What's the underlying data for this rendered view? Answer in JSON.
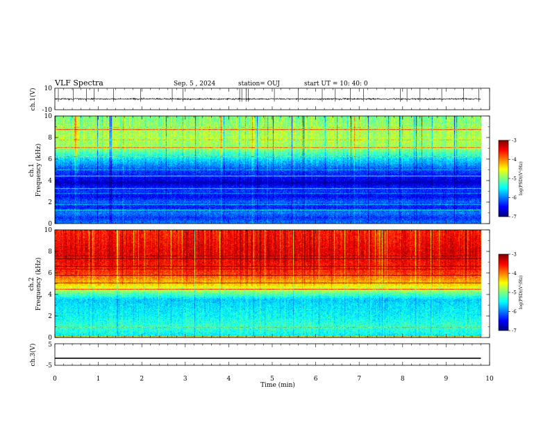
{
  "header": {
    "title": "VLF Spectra",
    "date": "Sep. 5 , 2024",
    "station": "station= OUJ",
    "start": "start UT =   10: 40: 0"
  },
  "chart_data": [
    {
      "type": "line",
      "name": "ch1-waveform",
      "ylabel": "ch.1(V)",
      "ylim": [
        -10,
        10
      ],
      "yticks": [
        "10",
        "-10"
      ],
      "baseline": 0,
      "noise_amplitude": 1.2,
      "spikes_min": [
        0.08,
        0.42,
        0.73,
        0.9,
        1.35,
        1.97,
        2.7,
        2.95,
        4.25,
        4.3,
        4.4,
        4.45,
        5.05,
        5.6,
        6.15,
        6.45,
        6.8,
        7.1,
        7.95,
        8.1,
        8.4,
        8.9,
        9.4,
        9.75
      ]
    },
    {
      "type": "heatmap",
      "name": "ch1-spectrogram",
      "ylabel": "ch.1 Frequency (kHz)",
      "ylim": [
        0,
        10
      ],
      "yticks": [
        "0",
        "2",
        "4",
        "6",
        "8",
        "10"
      ],
      "xlim": [
        0,
        9.8
      ],
      "scale": "log",
      "colorbar": {
        "range": [
          -7,
          -3
        ],
        "ticks": [
          "-3",
          "-4",
          "-5",
          "-6",
          "-7"
        ],
        "label": "log(PSD)(V²/Hz)"
      },
      "profile_khz": [
        0,
        0.5,
        1,
        1.5,
        2,
        2.5,
        3,
        3.5,
        3.8,
        4,
        4.5,
        5,
        6,
        7,
        8,
        9,
        10
      ],
      "profile_log_psd": [
        -6.0,
        -6.3,
        -6.0,
        -6.4,
        -6.1,
        -6.5,
        -6.3,
        -6.5,
        -6.8,
        -6.6,
        -6.4,
        -6.2,
        -5.6,
        -4.9,
        -4.8,
        -4.9,
        -5.0
      ]
    },
    {
      "type": "heatmap",
      "name": "ch2-spectrogram",
      "ylabel": "ch.2 Frequency (kHz)",
      "ylim": [
        0,
        10
      ],
      "yticks": [
        "0",
        "2",
        "4",
        "6",
        "8",
        "10"
      ],
      "xlim": [
        0,
        9.8
      ],
      "scale": "log",
      "colorbar": {
        "range": [
          -7,
          -3
        ],
        "ticks": [
          "-3",
          "-4",
          "-5",
          "-6",
          "-7"
        ],
        "label": "log(PSD)(V²/Hz)"
      },
      "profile_khz": [
        0,
        0.5,
        1,
        2,
        3,
        3.5,
        4,
        4.5,
        5,
        6,
        7,
        8,
        9,
        10
      ],
      "profile_log_psd": [
        -5.6,
        -5.4,
        -5.3,
        -5.5,
        -5.6,
        -5.7,
        -5.2,
        -4.7,
        -4.3,
        -3.7,
        -3.5,
        -3.4,
        -3.5,
        -3.6
      ]
    },
    {
      "type": "line",
      "name": "ch3-waveform",
      "ylabel": "ch.3(V)",
      "ylim": [
        -5,
        5
      ],
      "yticks": [
        "5",
        "-5"
      ],
      "level": -1.7
    }
  ],
  "x_axis": {
    "label": "Time  (min)",
    "range": [
      0,
      10
    ],
    "ticks": [
      "0",
      "1",
      "2",
      "3",
      "4",
      "5",
      "6",
      "7",
      "8",
      "9",
      "10"
    ]
  }
}
